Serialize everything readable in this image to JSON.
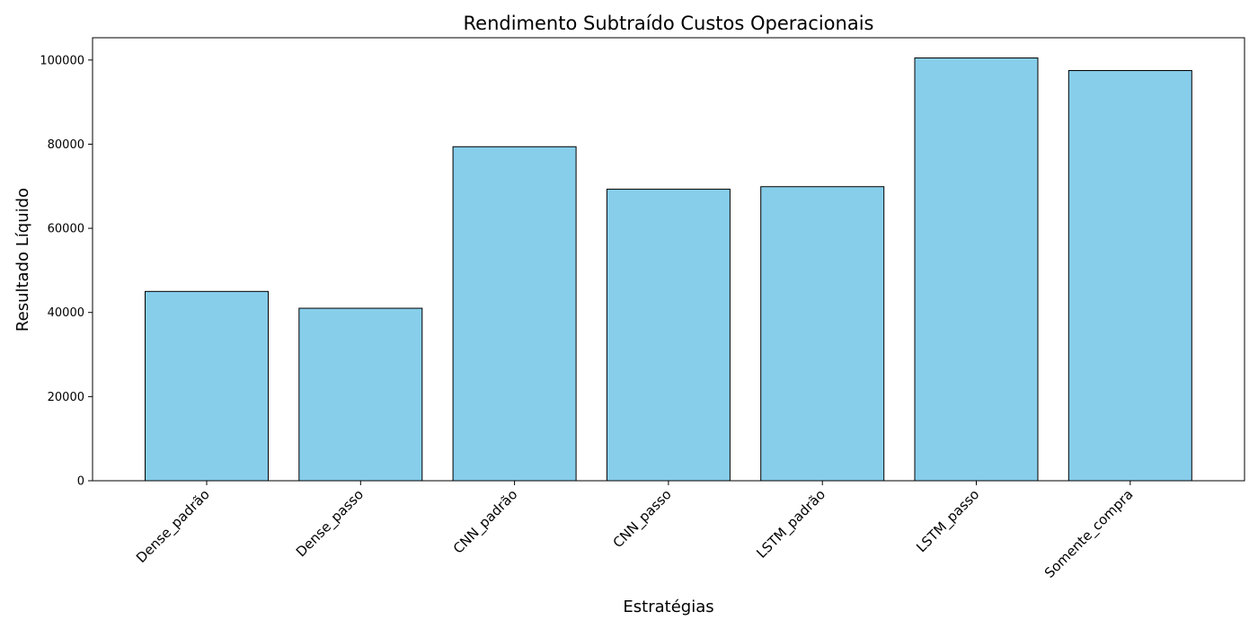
{
  "chart_data": {
    "type": "bar",
    "title": "Rendimento Subtraído Custos Operacionais",
    "xlabel": "Estratégias",
    "ylabel": "Resultado Líquido",
    "categories": [
      "Dense_padrão",
      "Dense_passo",
      "CNN_padrão",
      "CNN_passo",
      "LSTM_padrão",
      "LSTM_passo",
      "Somente_compra"
    ],
    "values": [
      45000,
      41000,
      79400,
      69300,
      69900,
      100500,
      97500
    ],
    "ylim": [
      0,
      105300
    ],
    "yticks": [
      "0",
      "20000",
      "40000",
      "60000",
      "80000",
      "100000"
    ],
    "ytick_values": [
      0,
      20000,
      40000,
      60000,
      80000,
      100000
    ],
    "grid": false,
    "bar_color": "#87CEEB",
    "bar_edge_color": "#000000",
    "zero_line_color": "#cc0000"
  }
}
